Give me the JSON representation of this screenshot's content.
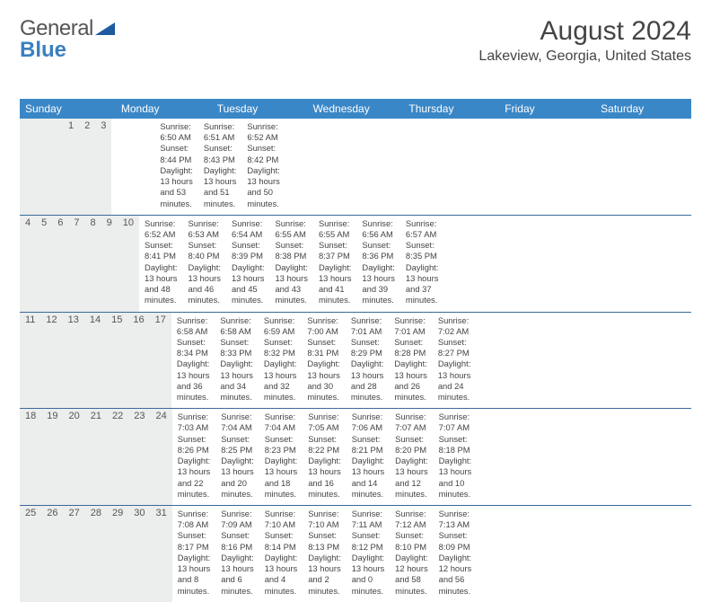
{
  "logo": {
    "text1": "General",
    "text2": "Blue",
    "shape_color": "#1e5a9e"
  },
  "title": "August 2024",
  "location": "Lakeview, Georgia, United States",
  "colors": {
    "header_bg": "#3a87c7",
    "header_text": "#ffffff",
    "daynum_bg": "#eceded",
    "rule": "#3a6a9a",
    "text": "#444444"
  },
  "weekdays": [
    "Sunday",
    "Monday",
    "Tuesday",
    "Wednesday",
    "Thursday",
    "Friday",
    "Saturday"
  ],
  "weeks": [
    [
      {
        "n": "",
        "sr": "",
        "ss": "",
        "dl": ""
      },
      {
        "n": "",
        "sr": "",
        "ss": "",
        "dl": ""
      },
      {
        "n": "",
        "sr": "",
        "ss": "",
        "dl": ""
      },
      {
        "n": "",
        "sr": "",
        "ss": "",
        "dl": ""
      },
      {
        "n": "1",
        "sr": "Sunrise: 6:50 AM",
        "ss": "Sunset: 8:44 PM",
        "dl": "Daylight: 13 hours and 53 minutes."
      },
      {
        "n": "2",
        "sr": "Sunrise: 6:51 AM",
        "ss": "Sunset: 8:43 PM",
        "dl": "Daylight: 13 hours and 51 minutes."
      },
      {
        "n": "3",
        "sr": "Sunrise: 6:52 AM",
        "ss": "Sunset: 8:42 PM",
        "dl": "Daylight: 13 hours and 50 minutes."
      }
    ],
    [
      {
        "n": "4",
        "sr": "Sunrise: 6:52 AM",
        "ss": "Sunset: 8:41 PM",
        "dl": "Daylight: 13 hours and 48 minutes."
      },
      {
        "n": "5",
        "sr": "Sunrise: 6:53 AM",
        "ss": "Sunset: 8:40 PM",
        "dl": "Daylight: 13 hours and 46 minutes."
      },
      {
        "n": "6",
        "sr": "Sunrise: 6:54 AM",
        "ss": "Sunset: 8:39 PM",
        "dl": "Daylight: 13 hours and 45 minutes."
      },
      {
        "n": "7",
        "sr": "Sunrise: 6:55 AM",
        "ss": "Sunset: 8:38 PM",
        "dl": "Daylight: 13 hours and 43 minutes."
      },
      {
        "n": "8",
        "sr": "Sunrise: 6:55 AM",
        "ss": "Sunset: 8:37 PM",
        "dl": "Daylight: 13 hours and 41 minutes."
      },
      {
        "n": "9",
        "sr": "Sunrise: 6:56 AM",
        "ss": "Sunset: 8:36 PM",
        "dl": "Daylight: 13 hours and 39 minutes."
      },
      {
        "n": "10",
        "sr": "Sunrise: 6:57 AM",
        "ss": "Sunset: 8:35 PM",
        "dl": "Daylight: 13 hours and 37 minutes."
      }
    ],
    [
      {
        "n": "11",
        "sr": "Sunrise: 6:58 AM",
        "ss": "Sunset: 8:34 PM",
        "dl": "Daylight: 13 hours and 36 minutes."
      },
      {
        "n": "12",
        "sr": "Sunrise: 6:58 AM",
        "ss": "Sunset: 8:33 PM",
        "dl": "Daylight: 13 hours and 34 minutes."
      },
      {
        "n": "13",
        "sr": "Sunrise: 6:59 AM",
        "ss": "Sunset: 8:32 PM",
        "dl": "Daylight: 13 hours and 32 minutes."
      },
      {
        "n": "14",
        "sr": "Sunrise: 7:00 AM",
        "ss": "Sunset: 8:31 PM",
        "dl": "Daylight: 13 hours and 30 minutes."
      },
      {
        "n": "15",
        "sr": "Sunrise: 7:01 AM",
        "ss": "Sunset: 8:29 PM",
        "dl": "Daylight: 13 hours and 28 minutes."
      },
      {
        "n": "16",
        "sr": "Sunrise: 7:01 AM",
        "ss": "Sunset: 8:28 PM",
        "dl": "Daylight: 13 hours and 26 minutes."
      },
      {
        "n": "17",
        "sr": "Sunrise: 7:02 AM",
        "ss": "Sunset: 8:27 PM",
        "dl": "Daylight: 13 hours and 24 minutes."
      }
    ],
    [
      {
        "n": "18",
        "sr": "Sunrise: 7:03 AM",
        "ss": "Sunset: 8:26 PM",
        "dl": "Daylight: 13 hours and 22 minutes."
      },
      {
        "n": "19",
        "sr": "Sunrise: 7:04 AM",
        "ss": "Sunset: 8:25 PM",
        "dl": "Daylight: 13 hours and 20 minutes."
      },
      {
        "n": "20",
        "sr": "Sunrise: 7:04 AM",
        "ss": "Sunset: 8:23 PM",
        "dl": "Daylight: 13 hours and 18 minutes."
      },
      {
        "n": "21",
        "sr": "Sunrise: 7:05 AM",
        "ss": "Sunset: 8:22 PM",
        "dl": "Daylight: 13 hours and 16 minutes."
      },
      {
        "n": "22",
        "sr": "Sunrise: 7:06 AM",
        "ss": "Sunset: 8:21 PM",
        "dl": "Daylight: 13 hours and 14 minutes."
      },
      {
        "n": "23",
        "sr": "Sunrise: 7:07 AM",
        "ss": "Sunset: 8:20 PM",
        "dl": "Daylight: 13 hours and 12 minutes."
      },
      {
        "n": "24",
        "sr": "Sunrise: 7:07 AM",
        "ss": "Sunset: 8:18 PM",
        "dl": "Daylight: 13 hours and 10 minutes."
      }
    ],
    [
      {
        "n": "25",
        "sr": "Sunrise: 7:08 AM",
        "ss": "Sunset: 8:17 PM",
        "dl": "Daylight: 13 hours and 8 minutes."
      },
      {
        "n": "26",
        "sr": "Sunrise: 7:09 AM",
        "ss": "Sunset: 8:16 PM",
        "dl": "Daylight: 13 hours and 6 minutes."
      },
      {
        "n": "27",
        "sr": "Sunrise: 7:10 AM",
        "ss": "Sunset: 8:14 PM",
        "dl": "Daylight: 13 hours and 4 minutes."
      },
      {
        "n": "28",
        "sr": "Sunrise: 7:10 AM",
        "ss": "Sunset: 8:13 PM",
        "dl": "Daylight: 13 hours and 2 minutes."
      },
      {
        "n": "29",
        "sr": "Sunrise: 7:11 AM",
        "ss": "Sunset: 8:12 PM",
        "dl": "Daylight: 13 hours and 0 minutes."
      },
      {
        "n": "30",
        "sr": "Sunrise: 7:12 AM",
        "ss": "Sunset: 8:10 PM",
        "dl": "Daylight: 12 hours and 58 minutes."
      },
      {
        "n": "31",
        "sr": "Sunrise: 7:13 AM",
        "ss": "Sunset: 8:09 PM",
        "dl": "Daylight: 12 hours and 56 minutes."
      }
    ]
  ]
}
